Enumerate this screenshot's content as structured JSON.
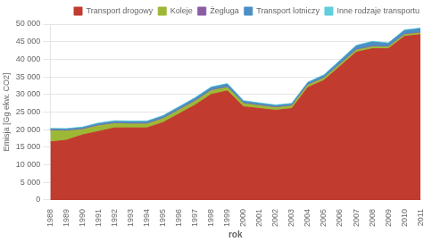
{
  "chart_data": {
    "type": "area",
    "stacked": true,
    "x_label": "rok",
    "y_label": "Emisja [Gg ekw. CO2]",
    "x": [
      1988,
      1989,
      1990,
      1991,
      1992,
      1993,
      1994,
      1995,
      1996,
      1997,
      1998,
      1999,
      2000,
      2001,
      2002,
      2003,
      2004,
      2005,
      2006,
      2007,
      2008,
      2009,
      2010,
      2011
    ],
    "series": [
      {
        "name": "Transport drogowy",
        "color": "#C13B2E",
        "values": [
          16500,
          17000,
          18500,
          19500,
          20500,
          20500,
          20500,
          22000,
          24500,
          27000,
          30000,
          31000,
          26500,
          26000,
          25500,
          26000,
          32000,
          34000,
          38000,
          42000,
          43000,
          43000,
          46500,
          47000
        ]
      },
      {
        "name": "Koleje",
        "color": "#9CB836",
        "values": [
          3200,
          2600,
          1500,
          1600,
          1200,
          1100,
          1100,
          1100,
          1100,
          1100,
          1100,
          1000,
          900,
          800,
          750,
          700,
          650,
          650,
          600,
          600,
          550,
          500,
          500,
          480
        ]
      },
      {
        "name": "Żegluga",
        "color": "#8B5EA4",
        "values": [
          150,
          150,
          150,
          150,
          150,
          150,
          150,
          150,
          150,
          150,
          150,
          150,
          150,
          150,
          150,
          150,
          150,
          150,
          150,
          150,
          150,
          150,
          150,
          150
        ]
      },
      {
        "name": "Transport lotniczy",
        "color": "#4B8FC4",
        "values": [
          300,
          350,
          400,
          450,
          480,
          480,
          500,
          550,
          600,
          650,
          700,
          750,
          500,
          450,
          420,
          420,
          500,
          600,
          800,
          1000,
          1200,
          800,
          1000,
          1050
        ]
      },
      {
        "name": "Inne rodzaje transportu",
        "color": "#5ECFDB",
        "values": [
          200,
          200,
          200,
          200,
          200,
          200,
          200,
          200,
          200,
          200,
          200,
          200,
          200,
          200,
          200,
          200,
          200,
          200,
          200,
          200,
          200,
          200,
          200,
          200
        ]
      }
    ],
    "xlim": [
      1988,
      2011
    ],
    "xticks": [
      1988,
      1989,
      1990,
      1991,
      1992,
      1993,
      1994,
      1995,
      1996,
      1997,
      1998,
      1999,
      2000,
      2001,
      2002,
      2003,
      2004,
      2005,
      2006,
      2007,
      2008,
      2009,
      2010,
      2011
    ],
    "ylim": [
      0,
      50000
    ],
    "yticks": [
      0,
      {
        "value": 5000,
        "label": "5 000"
      },
      {
        "value": 10000,
        "label": "10 000"
      },
      {
        "value": 15000,
        "label": "15 000"
      },
      {
        "value": 20000,
        "label": "20 000"
      },
      {
        "value": 25000,
        "label": "25 000"
      },
      {
        "value": 30000,
        "label": "30 000"
      },
      {
        "value": 35000,
        "label": "35 000"
      },
      {
        "value": 40000,
        "label": "40 000"
      },
      {
        "value": 45000,
        "label": "45 000"
      },
      {
        "value": 50000,
        "label": "50 000"
      }
    ],
    "grid": "y",
    "legend": "upper right"
  }
}
